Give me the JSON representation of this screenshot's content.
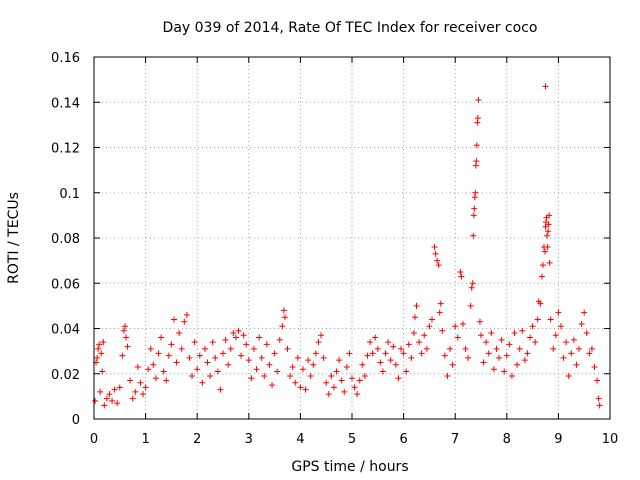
{
  "chart_data": {
    "type": "scatter",
    "title": "Day 039 of 2014, Rate Of TEC Index for receiver coco",
    "xlabel": "GPS time / hours",
    "ylabel": "ROTI / TECUs",
    "xlim": [
      0,
      10
    ],
    "ylim": [
      0,
      0.16
    ],
    "x_ticks": [
      "0",
      "1",
      "2",
      "3",
      "4",
      "5",
      "6",
      "7",
      "8",
      "9",
      "10"
    ],
    "y_ticks": [
      "0",
      "0.02",
      "0.04",
      "0.06",
      "0.08",
      "0.1",
      "0.12",
      "0.14",
      "0.16"
    ],
    "grid": true,
    "marker": "+",
    "marker_color": "#ff0000",
    "series": [
      {
        "name": "ROTI",
        "points": [
          [
            0.02,
            0.008
          ],
          [
            0.04,
            0.025
          ],
          [
            0.06,
            0.027
          ],
          [
            0.08,
            0.031
          ],
          [
            0.1,
            0.033
          ],
          [
            0.12,
            0.012
          ],
          [
            0.14,
            0.029
          ],
          [
            0.16,
            0.021
          ],
          [
            0.18,
            0.034
          ],
          [
            0.2,
            0.006
          ],
          [
            0.25,
            0.009
          ],
          [
            0.3,
            0.011
          ],
          [
            0.35,
            0.008
          ],
          [
            0.4,
            0.013
          ],
          [
            0.45,
            0.007
          ],
          [
            0.5,
            0.014
          ],
          [
            0.55,
            0.028
          ],
          [
            0.58,
            0.039
          ],
          [
            0.6,
            0.041
          ],
          [
            0.62,
            0.036
          ],
          [
            0.65,
            0.032
          ],
          [
            0.7,
            0.017
          ],
          [
            0.75,
            0.009
          ],
          [
            0.8,
            0.012
          ],
          [
            0.85,
            0.023
          ],
          [
            0.9,
            0.016
          ],
          [
            0.95,
            0.011
          ],
          [
            1.0,
            0.014
          ],
          [
            1.05,
            0.022
          ],
          [
            1.1,
            0.031
          ],
          [
            1.15,
            0.024
          ],
          [
            1.2,
            0.018
          ],
          [
            1.25,
            0.029
          ],
          [
            1.3,
            0.036
          ],
          [
            1.35,
            0.021
          ],
          [
            1.4,
            0.017
          ],
          [
            1.45,
            0.028
          ],
          [
            1.5,
            0.033
          ],
          [
            1.55,
            0.044
          ],
          [
            1.6,
            0.025
          ],
          [
            1.65,
            0.038
          ],
          [
            1.7,
            0.031
          ],
          [
            1.75,
            0.043
          ],
          [
            1.8,
            0.046
          ],
          [
            1.85,
            0.027
          ],
          [
            1.9,
            0.019
          ],
          [
            1.95,
            0.034
          ],
          [
            2.0,
            0.022
          ],
          [
            2.05,
            0.028
          ],
          [
            2.1,
            0.016
          ],
          [
            2.15,
            0.031
          ],
          [
            2.2,
            0.025
          ],
          [
            2.25,
            0.019
          ],
          [
            2.3,
            0.034
          ],
          [
            2.35,
            0.027
          ],
          [
            2.4,
            0.021
          ],
          [
            2.45,
            0.013
          ],
          [
            2.5,
            0.029
          ],
          [
            2.55,
            0.035
          ],
          [
            2.6,
            0.024
          ],
          [
            2.65,
            0.031
          ],
          [
            2.7,
            0.038
          ],
          [
            2.75,
            0.036
          ],
          [
            2.8,
            0.039
          ],
          [
            2.85,
            0.028
          ],
          [
            2.9,
            0.037
          ],
          [
            2.95,
            0.033
          ],
          [
            3.0,
            0.026
          ],
          [
            3.05,
            0.018
          ],
          [
            3.1,
            0.031
          ],
          [
            3.15,
            0.022
          ],
          [
            3.2,
            0.036
          ],
          [
            3.25,
            0.027
          ],
          [
            3.3,
            0.019
          ],
          [
            3.35,
            0.033
          ],
          [
            3.4,
            0.024
          ],
          [
            3.45,
            0.015
          ],
          [
            3.5,
            0.029
          ],
          [
            3.55,
            0.021
          ],
          [
            3.6,
            0.035
          ],
          [
            3.65,
            0.041
          ],
          [
            3.68,
            0.048
          ],
          [
            3.7,
            0.045
          ],
          [
            3.75,
            0.031
          ],
          [
            3.8,
            0.019
          ],
          [
            3.85,
            0.023
          ],
          [
            3.9,
            0.016
          ],
          [
            3.95,
            0.027
          ],
          [
            4.0,
            0.014
          ],
          [
            4.05,
            0.022
          ],
          [
            4.1,
            0.013
          ],
          [
            4.15,
            0.026
          ],
          [
            4.2,
            0.019
          ],
          [
            4.25,
            0.024
          ],
          [
            4.3,
            0.029
          ],
          [
            4.35,
            0.034
          ],
          [
            4.4,
            0.037
          ],
          [
            4.45,
            0.027
          ],
          [
            4.5,
            0.016
          ],
          [
            4.55,
            0.011
          ],
          [
            4.6,
            0.019
          ],
          [
            4.65,
            0.014
          ],
          [
            4.7,
            0.021
          ],
          [
            4.75,
            0.026
          ],
          [
            4.8,
            0.017
          ],
          [
            4.85,
            0.012
          ],
          [
            4.9,
            0.023
          ],
          [
            4.95,
            0.029
          ],
          [
            5.0,
            0.018
          ],
          [
            5.05,
            0.014
          ],
          [
            5.1,
            0.011
          ],
          [
            5.15,
            0.017
          ],
          [
            5.2,
            0.024
          ],
          [
            5.25,
            0.019
          ],
          [
            5.3,
            0.028
          ],
          [
            5.35,
            0.034
          ],
          [
            5.4,
            0.029
          ],
          [
            5.45,
            0.036
          ],
          [
            5.5,
            0.031
          ],
          [
            5.55,
            0.025
          ],
          [
            5.6,
            0.021
          ],
          [
            5.65,
            0.029
          ],
          [
            5.7,
            0.034
          ],
          [
            5.75,
            0.026
          ],
          [
            5.8,
            0.032
          ],
          [
            5.85,
            0.024
          ],
          [
            5.9,
            0.018
          ],
          [
            5.95,
            0.031
          ],
          [
            6.0,
            0.029
          ],
          [
            6.05,
            0.021
          ],
          [
            6.1,
            0.033
          ],
          [
            6.15,
            0.027
          ],
          [
            6.2,
            0.038
          ],
          [
            6.22,
            0.045
          ],
          [
            6.25,
            0.05
          ],
          [
            6.3,
            0.034
          ],
          [
            6.35,
            0.029
          ],
          [
            6.4,
            0.037
          ],
          [
            6.45,
            0.031
          ],
          [
            6.5,
            0.041
          ],
          [
            6.55,
            0.044
          ],
          [
            6.6,
            0.076
          ],
          [
            6.62,
            0.073
          ],
          [
            6.65,
            0.07
          ],
          [
            6.68,
            0.068
          ],
          [
            6.7,
            0.047
          ],
          [
            6.72,
            0.051
          ],
          [
            6.75,
            0.039
          ],
          [
            6.8,
            0.028
          ],
          [
            6.85,
            0.019
          ],
          [
            6.9,
            0.031
          ],
          [
            6.95,
            0.024
          ],
          [
            7.0,
            0.041
          ],
          [
            7.05,
            0.036
          ],
          [
            7.1,
            0.065
          ],
          [
            7.12,
            0.063
          ],
          [
            7.15,
            0.042
          ],
          [
            7.2,
            0.031
          ],
          [
            7.25,
            0.027
          ],
          [
            7.3,
            0.05
          ],
          [
            7.32,
            0.058
          ],
          [
            7.34,
            0.06
          ],
          [
            7.35,
            0.081
          ],
          [
            7.36,
            0.09
          ],
          [
            7.37,
            0.093
          ],
          [
            7.38,
            0.098
          ],
          [
            7.39,
            0.1
          ],
          [
            7.4,
            0.112
          ],
          [
            7.41,
            0.114
          ],
          [
            7.42,
            0.121
          ],
          [
            7.43,
            0.131
          ],
          [
            7.44,
            0.133
          ],
          [
            7.45,
            0.141
          ],
          [
            7.48,
            0.043
          ],
          [
            7.5,
            0.037
          ],
          [
            7.55,
            0.025
          ],
          [
            7.6,
            0.034
          ],
          [
            7.65,
            0.029
          ],
          [
            7.7,
            0.038
          ],
          [
            7.75,
            0.022
          ],
          [
            7.8,
            0.031
          ],
          [
            7.85,
            0.027
          ],
          [
            7.9,
            0.035
          ],
          [
            7.95,
            0.021
          ],
          [
            8.0,
            0.028
          ],
          [
            8.05,
            0.033
          ],
          [
            8.1,
            0.019
          ],
          [
            8.15,
            0.038
          ],
          [
            8.2,
            0.024
          ],
          [
            8.25,
            0.031
          ],
          [
            8.3,
            0.039
          ],
          [
            8.35,
            0.026
          ],
          [
            8.4,
            0.029
          ],
          [
            8.45,
            0.036
          ],
          [
            8.5,
            0.041
          ],
          [
            8.55,
            0.034
          ],
          [
            8.6,
            0.044
          ],
          [
            8.62,
            0.052
          ],
          [
            8.65,
            0.051
          ],
          [
            8.68,
            0.063
          ],
          [
            8.7,
            0.068
          ],
          [
            8.72,
            0.076
          ],
          [
            8.74,
            0.074
          ],
          [
            8.75,
            0.085
          ],
          [
            8.76,
            0.087
          ],
          [
            8.77,
            0.089
          ],
          [
            8.78,
            0.081
          ],
          [
            8.79,
            0.076
          ],
          [
            8.8,
            0.083
          ],
          [
            8.81,
            0.086
          ],
          [
            8.82,
            0.09
          ],
          [
            8.83,
            0.069
          ],
          [
            8.75,
            0.147
          ],
          [
            8.85,
            0.044
          ],
          [
            8.9,
            0.031
          ],
          [
            8.95,
            0.037
          ],
          [
            9.0,
            0.047
          ],
          [
            9.05,
            0.041
          ],
          [
            9.1,
            0.027
          ],
          [
            9.15,
            0.034
          ],
          [
            9.2,
            0.019
          ],
          [
            9.25,
            0.029
          ],
          [
            9.3,
            0.035
          ],
          [
            9.35,
            0.024
          ],
          [
            9.4,
            0.031
          ],
          [
            9.45,
            0.042
          ],
          [
            9.5,
            0.047
          ],
          [
            9.55,
            0.038
          ],
          [
            9.6,
            0.029
          ],
          [
            9.65,
            0.031
          ],
          [
            9.7,
            0.023
          ],
          [
            9.75,
            0.017
          ],
          [
            9.78,
            0.009
          ],
          [
            9.8,
            0.006
          ]
        ]
      }
    ]
  }
}
